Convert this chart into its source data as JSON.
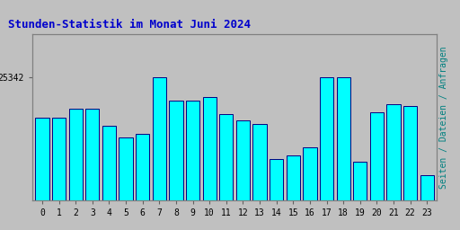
{
  "title": "Stunden-Statistik im Monat Juni 2024",
  "ylabel": "Seiten / Dateien / Anfragen",
  "xlabel_values": [
    0,
    1,
    2,
    3,
    4,
    5,
    6,
    7,
    8,
    9,
    10,
    11,
    12,
    13,
    14,
    15,
    16,
    17,
    18,
    19,
    20,
    21,
    22,
    23
  ],
  "ytick_label": "25342",
  "ytick_val": 25342,
  "bar_values": [
    25100,
    25100,
    25150,
    25150,
    25050,
    24980,
    25000,
    25342,
    25200,
    25200,
    25220,
    25120,
    25080,
    25060,
    24850,
    24870,
    24920,
    25342,
    25340,
    24830,
    25130,
    25180,
    25170,
    24750
  ],
  "bar_color": "#00FFFF",
  "bar_edge_color": "#000080",
  "bg_color": "#C0C0C0",
  "plot_bg_color": "#C0C0C0",
  "title_color": "#0000CC",
  "ylabel_color": "#008080",
  "tick_color": "#000000",
  "ymax": 25600,
  "ymin": 24600,
  "title_fontsize": 9,
  "ylabel_fontsize": 7,
  "tick_fontsize": 7
}
